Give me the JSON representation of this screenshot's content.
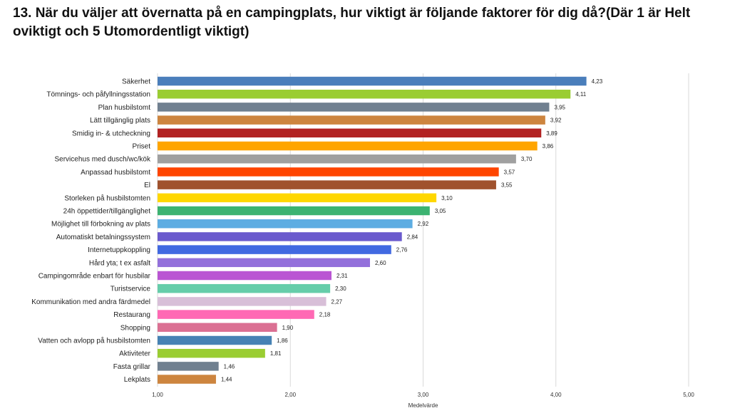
{
  "title": "13. När du väljer att övernatta på en campingplats, hur viktigt är följande faktorer för dig då?(Där 1 är Helt oviktigt och 5 Utomordentligt viktigt)",
  "chart_data": {
    "type": "bar",
    "orientation": "horizontal",
    "title": "13. När du väljer att övernatta på en campingplats, hur viktigt är följande faktorer för dig då?(Där 1 är Helt oviktigt och 5 Utomordentligt viktigt)",
    "xlabel": "Medelvärde",
    "ylabel": "",
    "xlim": [
      1,
      5
    ],
    "xticks": [
      1,
      2,
      3,
      4,
      5
    ],
    "xtick_labels": [
      "1,00",
      "2,00",
      "3,00",
      "4,00",
      "5,00"
    ],
    "grid": true,
    "legend": "none",
    "categories": [
      "Säkerhet",
      "Tömnings- och påfyllningsstation",
      "Plan husbilstomt",
      "Lätt tillgänglig plats",
      "Smidig in- & utcheckning",
      "Priset",
      "Servicehus med dusch/wc/kök",
      "Anpassad husbilstomt",
      "El",
      "Storleken på husbilstomten",
      "24h öppettider/tillgänglighet",
      "Möjlighet till förbokning av plats",
      "Automatiskt betalningssystem",
      "Internetuppkoppling",
      "Hård yta; t ex asfalt",
      "Campingområde enbart för husbilar",
      "Turistservice",
      "Kommunikation med andra färdmedel",
      "Restaurang",
      "Shopping",
      "Vatten och avlopp på husbilstomten",
      "Aktiviteter",
      "Fasta grillar",
      "Lekplats"
    ],
    "values": [
      4.23,
      4.11,
      3.95,
      3.92,
      3.89,
      3.86,
      3.7,
      3.57,
      3.55,
      3.1,
      3.05,
      2.92,
      2.84,
      2.76,
      2.6,
      2.31,
      2.3,
      2.27,
      2.18,
      1.9,
      1.86,
      1.81,
      1.46,
      1.44
    ],
    "value_labels": [
      "4,23",
      "4,11",
      "3,95",
      "3,92",
      "3,89",
      "3,86",
      "3,70",
      "3,57",
      "3,55",
      "3,10",
      "3,05",
      "2,92",
      "2,84",
      "2,76",
      "2,60",
      "2,31",
      "2,30",
      "2,27",
      "2,18",
      "1,90",
      "1,86",
      "1,81",
      "1,46",
      "1,44"
    ],
    "colors": [
      "#4a7ebb",
      "#9acd32",
      "#708090",
      "#cd853f",
      "#b22222",
      "#ffa500",
      "#a0a0a0",
      "#ff4500",
      "#a0522d",
      "#ffd700",
      "#3cb371",
      "#5dade2",
      "#6a5acd",
      "#4169e1",
      "#9370db",
      "#ba55d3",
      "#66cdaa",
      "#d8bfd8",
      "#ff69b4",
      "#db7093",
      "#4682b4",
      "#9acd32",
      "#708090",
      "#cd853f"
    ],
    "gridline_color": "#d9d9d9"
  }
}
